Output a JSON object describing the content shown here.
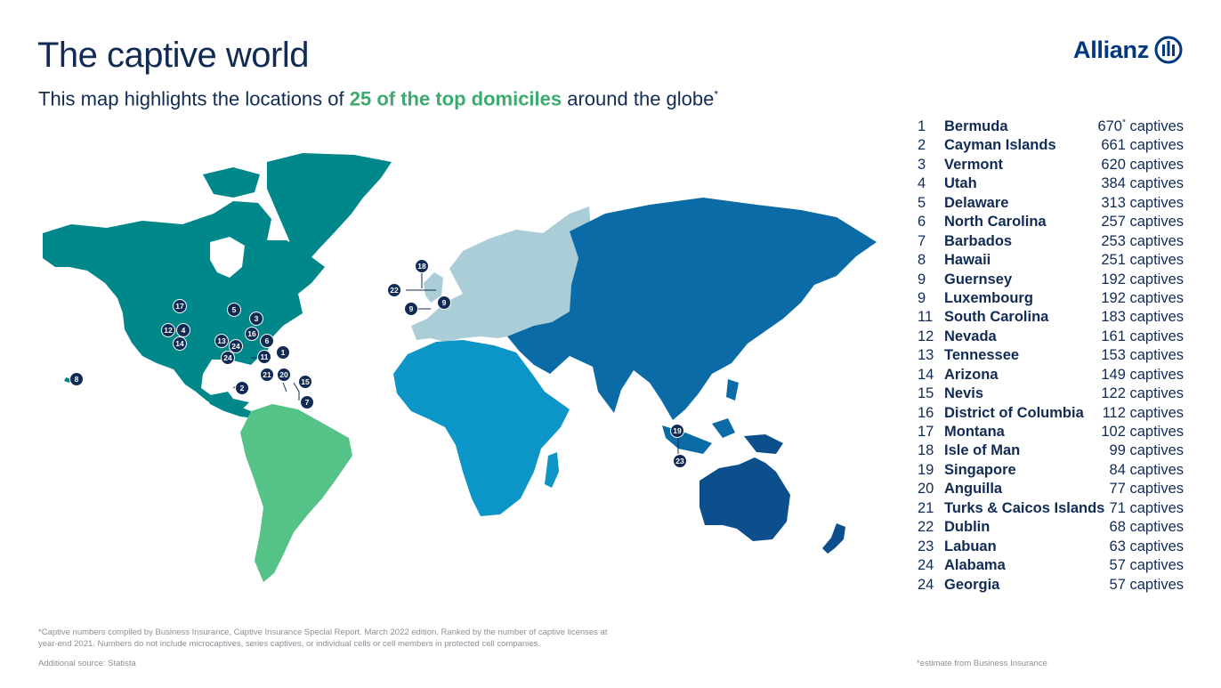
{
  "header": {
    "title": "The captive world",
    "subtitle_before": "This map highlights the locations of ",
    "subtitle_highlight": "25 of the top domiciles",
    "subtitle_after": " around the globe",
    "subtitle_mark": "*"
  },
  "brand": {
    "name": "Allianz"
  },
  "domiciles": [
    {
      "rank": "1",
      "name": "Bermuda",
      "count": "670",
      "mark": "*",
      "unit": "captives"
    },
    {
      "rank": "2",
      "name": "Cayman Islands",
      "count": "661",
      "mark": "",
      "unit": "captives"
    },
    {
      "rank": "3",
      "name": "Vermont",
      "count": "620",
      "mark": "",
      "unit": "captives"
    },
    {
      "rank": "4",
      "name": "Utah",
      "count": "384",
      "mark": "",
      "unit": "captives"
    },
    {
      "rank": "5",
      "name": "Delaware",
      "count": "313",
      "mark": "",
      "unit": "captives"
    },
    {
      "rank": "6",
      "name": "North Carolina",
      "count": "257",
      "mark": "",
      "unit": "captives"
    },
    {
      "rank": "7",
      "name": "Barbados",
      "count": "253",
      "mark": "",
      "unit": "captives"
    },
    {
      "rank": "8",
      "name": "Hawaii",
      "count": "251",
      "mark": "",
      "unit": "captives"
    },
    {
      "rank": "9",
      "name": "Guernsey",
      "count": "192",
      "mark": "",
      "unit": "captives"
    },
    {
      "rank": "9",
      "name": "Luxembourg",
      "count": "192",
      "mark": "",
      "unit": "captives"
    },
    {
      "rank": "11",
      "name": "South Carolina",
      "count": "183",
      "mark": "",
      "unit": "captives"
    },
    {
      "rank": "12",
      "name": "Nevada",
      "count": "161",
      "mark": "",
      "unit": "captives"
    },
    {
      "rank": "13",
      "name": "Tennessee",
      "count": "153",
      "mark": "",
      "unit": "captives"
    },
    {
      "rank": "14",
      "name": "Arizona",
      "count": "149",
      "mark": "",
      "unit": "captives"
    },
    {
      "rank": "15",
      "name": "Nevis",
      "count": "122",
      "mark": "",
      "unit": "captives"
    },
    {
      "rank": "16",
      "name": "District of Columbia",
      "count": "112",
      "mark": "",
      "unit": "captives"
    },
    {
      "rank": "17",
      "name": "Montana",
      "count": "102",
      "mark": "",
      "unit": "captives"
    },
    {
      "rank": "18",
      "name": "Isle of Man",
      "count": "99",
      "mark": "",
      "unit": "captives"
    },
    {
      "rank": "19",
      "name": "Singapore",
      "count": "84",
      "mark": "",
      "unit": "captives"
    },
    {
      "rank": "20",
      "name": "Anguilla",
      "count": "77",
      "mark": "",
      "unit": "captives"
    },
    {
      "rank": "21",
      "name": "Turks & Caicos Islands",
      "count": "71",
      "mark": "",
      "unit": "captives"
    },
    {
      "rank": "22",
      "name": "Dublin",
      "count": "68",
      "mark": "",
      "unit": "captives"
    },
    {
      "rank": "23",
      "name": "Labuan",
      "count": "63",
      "mark": "",
      "unit": "captives"
    },
    {
      "rank": "24",
      "name": "Alabama",
      "count": "57",
      "mark": "",
      "unit": "captives"
    },
    {
      "rank": "24",
      "name": "Georgia",
      "count": "57",
      "mark": "",
      "unit": "captives"
    }
  ],
  "region_colors": {
    "north_america_greenland": "#00878a",
    "south_america": "#55c287",
    "europe": "#aacdd8",
    "africa": "#0c96c8",
    "asia": "#0a6ba6",
    "oceania": "#0d4f8c",
    "marker": "#122b54"
  },
  "footnotes": {
    "source_note": "*Captive numbers compiled by Business Insurance, Captive Insurance Special Report. March 2022 edition. Ranked by the number of captive licenses at year-end 2021. Numbers do not include microcaptives, series captives, or individual cells or cell members in protected cell companies.",
    "additional_source": "Additional source: Statista",
    "estimate_note": "*estimate from Business Insurance"
  }
}
